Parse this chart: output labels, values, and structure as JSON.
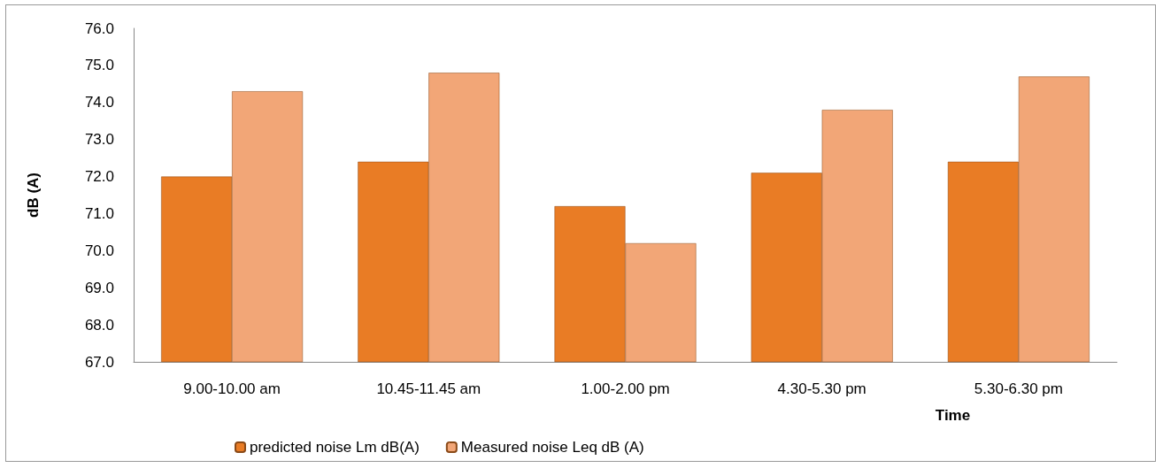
{
  "chart_data": {
    "type": "bar",
    "xlabel": "Time",
    "ylabel": "dB (A)",
    "categories": [
      "9.00-10.00 am",
      "10.45-11.45 am",
      "1.00-2.00 pm",
      "4.30-5.30 pm",
      "5.30-6.30 pm"
    ],
    "series": [
      {
        "name": "predicted noise Lm dB(A)",
        "color": "#e97c25",
        "values": [
          72.0,
          72.4,
          71.2,
          72.1,
          72.4
        ]
      },
      {
        "name": "Measured noise Leq dB (A)",
        "color": "#f2a677",
        "values": [
          74.3,
          74.8,
          70.2,
          73.8,
          74.7
        ]
      }
    ],
    "ylim": [
      67,
      76
    ],
    "yticks": [
      {
        "value": 67,
        "label": "67.0"
      },
      {
        "value": 68,
        "label": "68.0"
      },
      {
        "value": 69,
        "label": "69.0"
      },
      {
        "value": 70,
        "label": "70.0"
      },
      {
        "value": 71,
        "label": "71.0"
      },
      {
        "value": 72,
        "label": "72.0"
      },
      {
        "value": 73,
        "label": "73.0"
      },
      {
        "value": 74,
        "label": "74.0"
      },
      {
        "value": 75,
        "label": "75.0"
      },
      {
        "value": 76,
        "label": "76.0"
      }
    ],
    "grid": false,
    "legend": "bottom"
  }
}
